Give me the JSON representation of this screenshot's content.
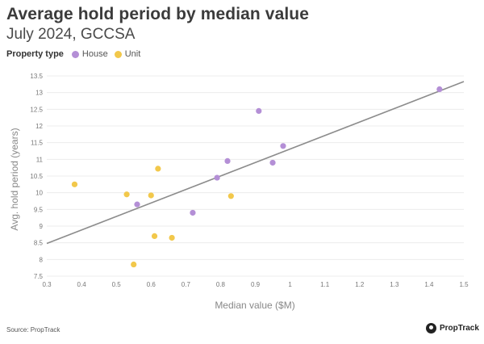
{
  "header": {
    "title": "Average hold period by median value",
    "subtitle": "July 2024, GCCSA"
  },
  "legend": {
    "title": "Property type",
    "items": [
      {
        "label": "House",
        "color": "#b48fd6"
      },
      {
        "label": "Unit",
        "color": "#f2c84b"
      }
    ]
  },
  "footer": {
    "source": "Source: PropTrack",
    "brand": "PropTrack"
  },
  "chart_data": {
    "type": "scatter",
    "title": "Average hold period by median value",
    "subtitle": "July 2024, GCCSA",
    "xlabel": "Median value ($M)",
    "ylabel": "Avg. hold period (years)",
    "xlim": [
      0.3,
      1.5
    ],
    "ylim": [
      7.5,
      13.5
    ],
    "x_ticks": [
      "0.3",
      "0.4",
      "0.5",
      "0.6",
      "0.7",
      "0.8",
      "0.9",
      "1",
      "1.1",
      "1.2",
      "1.3",
      "1.4",
      "1.5"
    ],
    "y_ticks": [
      "7.5",
      "8",
      "8.5",
      "9",
      "9.5",
      "10",
      "10.5",
      "11",
      "11.5",
      "12",
      "12.5",
      "13",
      "13.5"
    ],
    "grid": true,
    "series": [
      {
        "name": "House",
        "color": "#b48fd6",
        "points": [
          {
            "x": 0.56,
            "y": 9.65
          },
          {
            "x": 0.72,
            "y": 9.4
          },
          {
            "x": 0.79,
            "y": 10.45
          },
          {
            "x": 0.82,
            "y": 10.95
          },
          {
            "x": 0.91,
            "y": 12.45
          },
          {
            "x": 0.95,
            "y": 10.9
          },
          {
            "x": 0.98,
            "y": 11.4
          },
          {
            "x": 1.43,
            "y": 13.1
          }
        ]
      },
      {
        "name": "Unit",
        "color": "#f2c84b",
        "points": [
          {
            "x": 0.38,
            "y": 10.25
          },
          {
            "x": 0.53,
            "y": 9.95
          },
          {
            "x": 0.55,
            "y": 7.85
          },
          {
            "x": 0.6,
            "y": 9.92
          },
          {
            "x": 0.61,
            "y": 8.7
          },
          {
            "x": 0.62,
            "y": 10.72
          },
          {
            "x": 0.66,
            "y": 8.65
          },
          {
            "x": 0.83,
            "y": 9.9
          }
        ]
      }
    ],
    "trendline": {
      "x": [
        0.3,
        1.5
      ],
      "y": [
        8.48,
        13.33
      ],
      "color": "#8c8c8c"
    }
  }
}
